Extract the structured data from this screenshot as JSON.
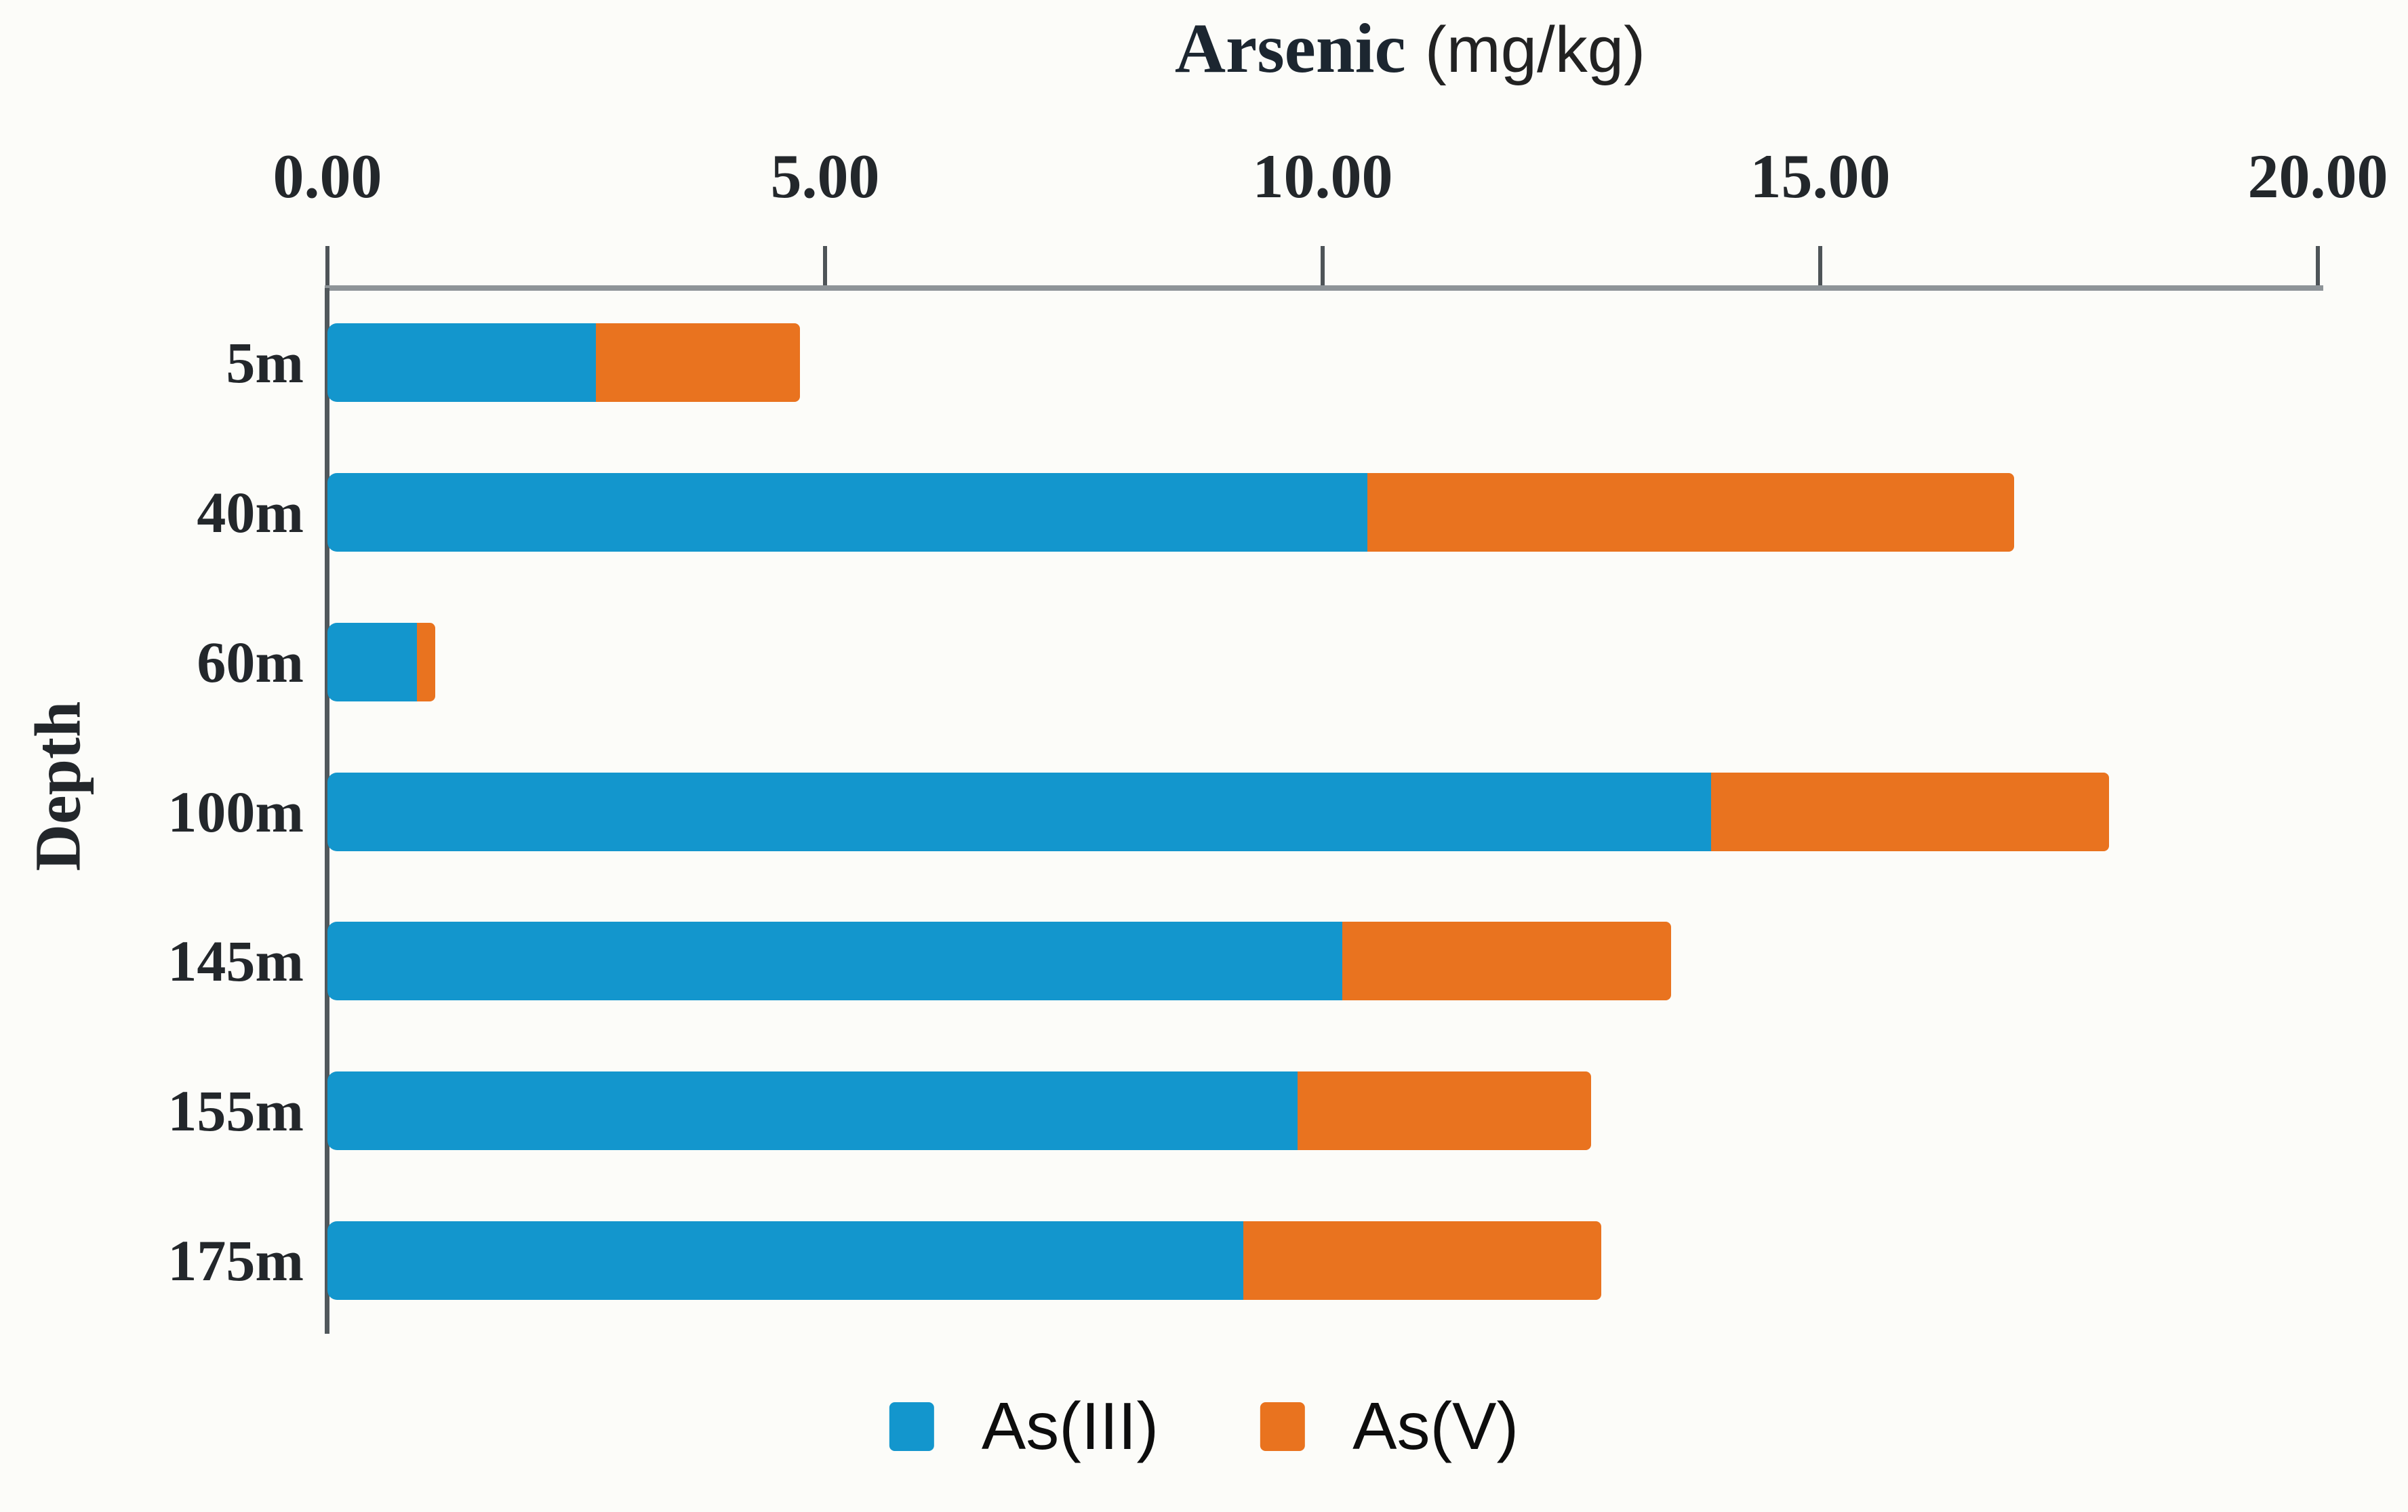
{
  "chart_data": {
    "type": "bar",
    "orientation": "horizontal",
    "stacked": true,
    "title": "Arsenic",
    "title_unit": "(mg/kg)",
    "xlabel": "Arsenic (mg/kg)",
    "ylabel": "Depth",
    "xlim": [
      0,
      20
    ],
    "x_axis_position": "top",
    "grid": false,
    "tick_values": [
      0,
      5,
      10,
      15,
      20
    ],
    "tick_labels": [
      "0.00",
      "5.00",
      "10.00",
      "15.00",
      "20.00"
    ],
    "categories": [
      "5m",
      "40m",
      "60m",
      "100m",
      "145m",
      "155m",
      "175m"
    ],
    "series": [
      {
        "name": "As(III)",
        "color": "#1396cd",
        "values": [
          2.7,
          10.45,
          0.9,
          13.9,
          10.2,
          9.75,
          9.2
        ]
      },
      {
        "name": "As(V)",
        "color": "#e9731f",
        "values": [
          2.05,
          6.5,
          0.18,
          4.0,
          3.3,
          2.95,
          3.6
        ]
      }
    ],
    "legend": {
      "position": "bottom",
      "entries": [
        {
          "label": "As(III)",
          "color": "#1396cd"
        },
        {
          "label": "As(V)",
          "color": "#e9731f"
        }
      ]
    }
  }
}
